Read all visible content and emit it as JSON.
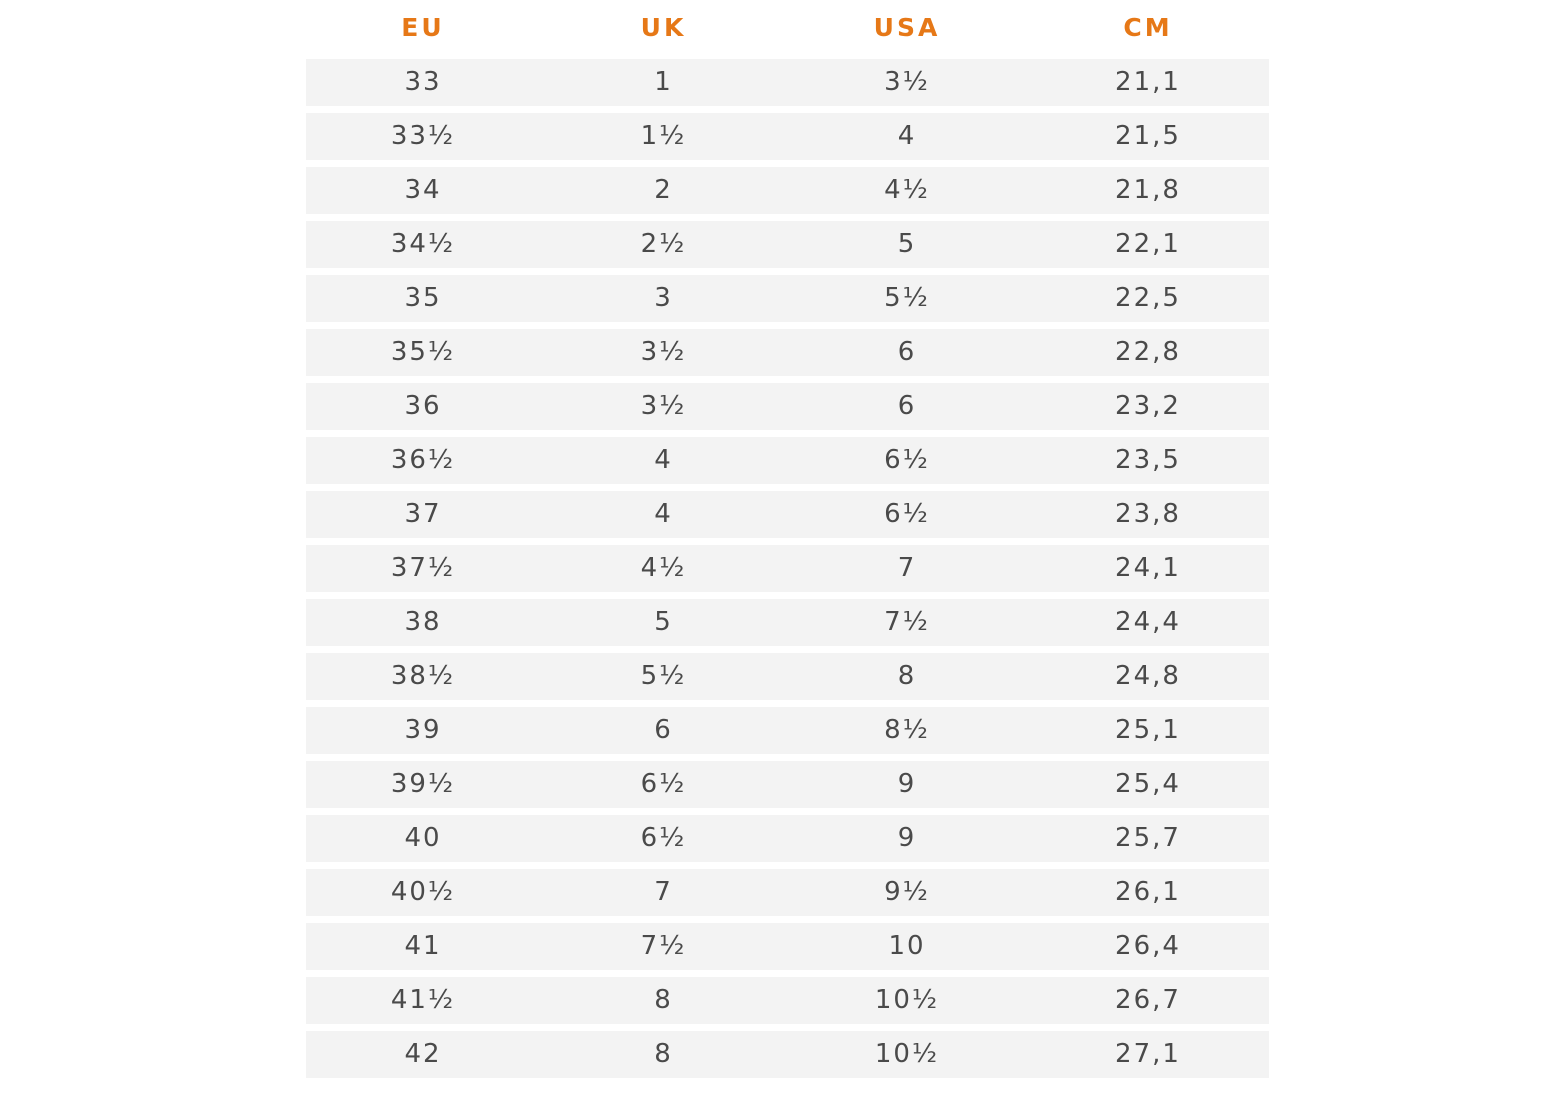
{
  "table": {
    "headers": [
      "EU",
      "UK",
      "USA",
      "CM"
    ],
    "rows": [
      [
        "33",
        "1",
        "3½",
        "21,1"
      ],
      [
        "33½",
        "1½",
        "4",
        "21,5"
      ],
      [
        "34",
        "2",
        "4½",
        "21,8"
      ],
      [
        "34½",
        "2½",
        "5",
        "22,1"
      ],
      [
        "35",
        "3",
        "5½",
        "22,5"
      ],
      [
        "35½",
        "3½",
        "6",
        "22,8"
      ],
      [
        "36",
        "3½",
        "6",
        "23,2"
      ],
      [
        "36½",
        "4",
        "6½",
        "23,5"
      ],
      [
        "37",
        "4",
        "6½",
        "23,8"
      ],
      [
        "37½",
        "4½",
        "7",
        "24,1"
      ],
      [
        "38",
        "5",
        "7½",
        "24,4"
      ],
      [
        "38½",
        "5½",
        "8",
        "24,8"
      ],
      [
        "39",
        "6",
        "8½",
        "25,1"
      ],
      [
        "39½",
        "6½",
        "9",
        "25,4"
      ],
      [
        "40",
        "6½",
        "9",
        "25,7"
      ],
      [
        "40½",
        "7",
        "9½",
        "26,1"
      ],
      [
        "41",
        "7½",
        "10",
        "26,4"
      ],
      [
        "41½",
        "8",
        "10½",
        "26,7"
      ],
      [
        "42",
        "8",
        "10½",
        "27,1"
      ]
    ]
  },
  "colors": {
    "header_text": "#e67817",
    "row_background": "#f3f3f3",
    "cell_text": "#4a4a4a"
  }
}
